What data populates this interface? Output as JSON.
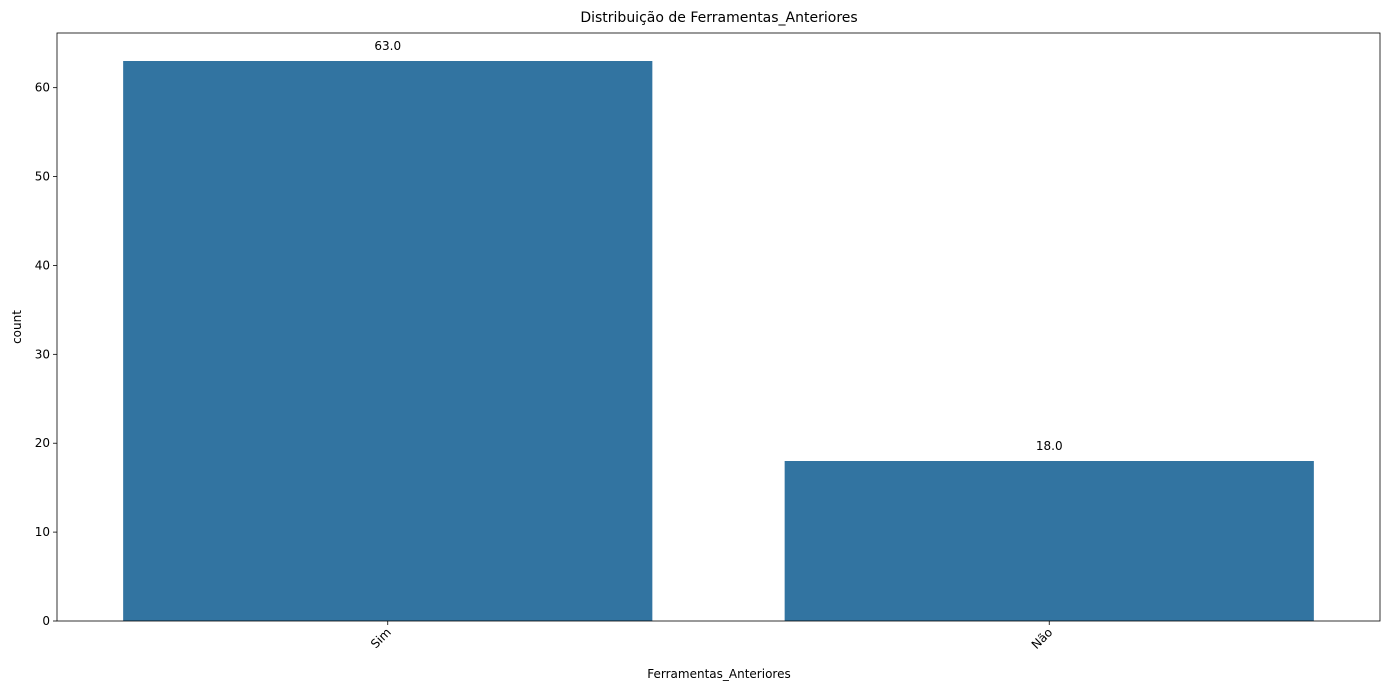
{
  "chart_data": {
    "type": "bar",
    "title": "Distribuição de Ferramentas_Anteriores",
    "xlabel": "Ferramentas_Anteriores",
    "ylabel": "count",
    "categories": [
      "Sim",
      "Não"
    ],
    "values": [
      63,
      18
    ],
    "data_labels": [
      "63.0",
      "18.0"
    ],
    "yticks": [
      0,
      10,
      20,
      30,
      40,
      50,
      60
    ],
    "ylim": [
      0,
      66.15
    ],
    "grid": false,
    "legend": "none",
    "bar_color": "#3274a1",
    "x_tick_rotation": 45
  }
}
